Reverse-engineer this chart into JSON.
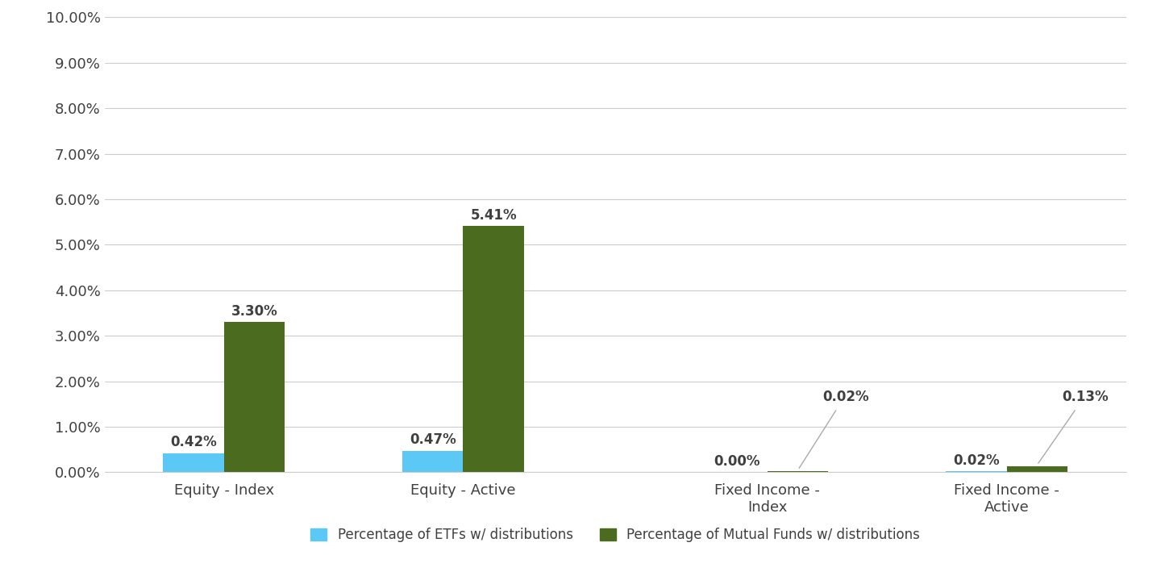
{
  "categories": [
    "Equity - Index",
    "Equity - Active",
    "Fixed Income -\nIndex",
    "Fixed Income -\nActive"
  ],
  "etf_values": [
    0.0042,
    0.0047,
    0.0,
    0.0002
  ],
  "mf_values": [
    0.033,
    0.0541,
    0.0002,
    0.0013
  ],
  "etf_labels": [
    "0.42%",
    "0.47%",
    "0.00%",
    "0.02%"
  ],
  "mf_labels": [
    "3.30%",
    "5.41%",
    "0.02%",
    "0.13%"
  ],
  "etf_color": "#5BC8F5",
  "mf_color": "#4B6B1F",
  "ylim": [
    0,
    0.1
  ],
  "yticks": [
    0.0,
    0.01,
    0.02,
    0.03,
    0.04,
    0.05,
    0.06,
    0.07,
    0.08,
    0.09,
    0.1
  ],
  "ytick_labels": [
    "0.00%",
    "1.00%",
    "2.00%",
    "3.00%",
    "4.00%",
    "5.00%",
    "6.00%",
    "7.00%",
    "8.00%",
    "9.00%",
    "10.00%"
  ],
  "legend_etf": "Percentage of ETFs w/ distributions",
  "legend_mf": "Percentage of Mutual Funds w/ distributions",
  "bar_width": 0.28,
  "background_color": "#ffffff",
  "gridline_color": "#cccccc",
  "text_color": "#404040",
  "label_fontsize": 12,
  "tick_fontsize": 13,
  "legend_fontsize": 12,
  "x_positions": [
    0,
    1.1,
    2.5,
    3.6
  ]
}
